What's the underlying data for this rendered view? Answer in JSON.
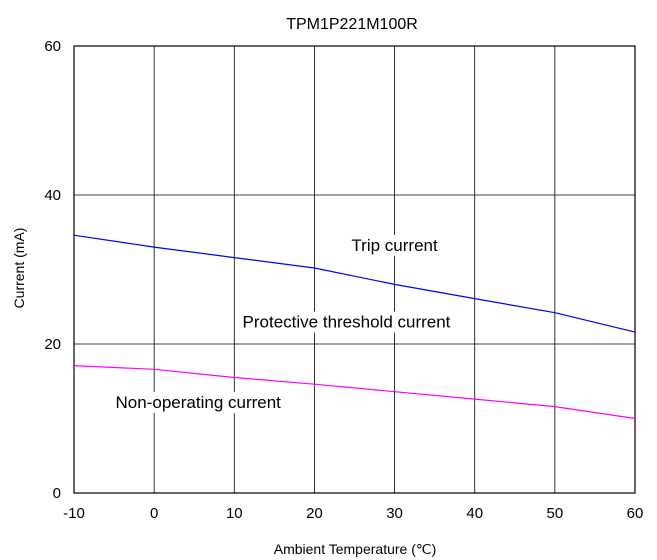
{
  "chart_data": {
    "type": "line",
    "title": "TPM1P221M100R",
    "xlabel": "Ambient Temperature (℃)",
    "ylabel": "Current (mA)",
    "xlim": [
      -10,
      60
    ],
    "ylim": [
      0,
      60
    ],
    "x_ticks": [
      "-10",
      "0",
      "10",
      "20",
      "30",
      "40",
      "50",
      "60"
    ],
    "y_ticks": [
      "0",
      "20",
      "40",
      "60"
    ],
    "grid": true,
    "series": [
      {
        "name": "Trip current",
        "color": "#0000ff",
        "x": [
          -10,
          0,
          10,
          20,
          30,
          40,
          50,
          60
        ],
        "y": [
          34.6,
          33.0,
          31.6,
          30.2,
          28.0,
          26.1,
          24.2,
          21.6
        ]
      },
      {
        "name": "Non-operating current",
        "color": "#ff00ff",
        "x": [
          -10,
          0,
          10,
          20,
          30,
          40,
          50,
          60
        ],
        "y": [
          17.1,
          16.6,
          15.5,
          14.6,
          13.6,
          12.6,
          11.6,
          10.0
        ]
      }
    ],
    "annotations": [
      {
        "text": "Trip current",
        "x": 30,
        "y": 32.5
      },
      {
        "text": "Protective threshold current",
        "x": 24,
        "y": 22.2
      },
      {
        "text": "Non-operating current",
        "x": 5.5,
        "y": 11.4
      }
    ]
  }
}
